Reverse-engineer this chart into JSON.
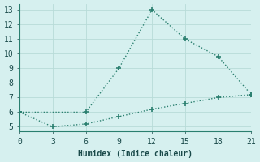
{
  "line1_x": [
    0,
    6,
    9,
    12,
    15,
    18,
    21
  ],
  "line1_y": [
    6,
    6,
    9,
    13,
    11,
    9.8,
    7.2
  ],
  "line2_x": [
    0,
    3,
    6,
    9,
    12,
    15,
    18,
    21
  ],
  "line2_y": [
    6,
    5,
    5.2,
    5.7,
    6.2,
    6.6,
    7.0,
    7.2
  ],
  "xlabel": "Humidex (Indice chaleur)",
  "xlim": [
    0,
    21
  ],
  "ylim": [
    4.7,
    13.4
  ],
  "xticks": [
    0,
    3,
    6,
    9,
    12,
    15,
    18,
    21
  ],
  "yticks": [
    5,
    6,
    7,
    8,
    9,
    10,
    11,
    12,
    13
  ],
  "line_color": "#2a7f6f",
  "bg_color": "#d6f0ef",
  "grid_color": "#b8dbd8",
  "marker": "+",
  "marker_size": 5,
  "line_width": 1.0
}
